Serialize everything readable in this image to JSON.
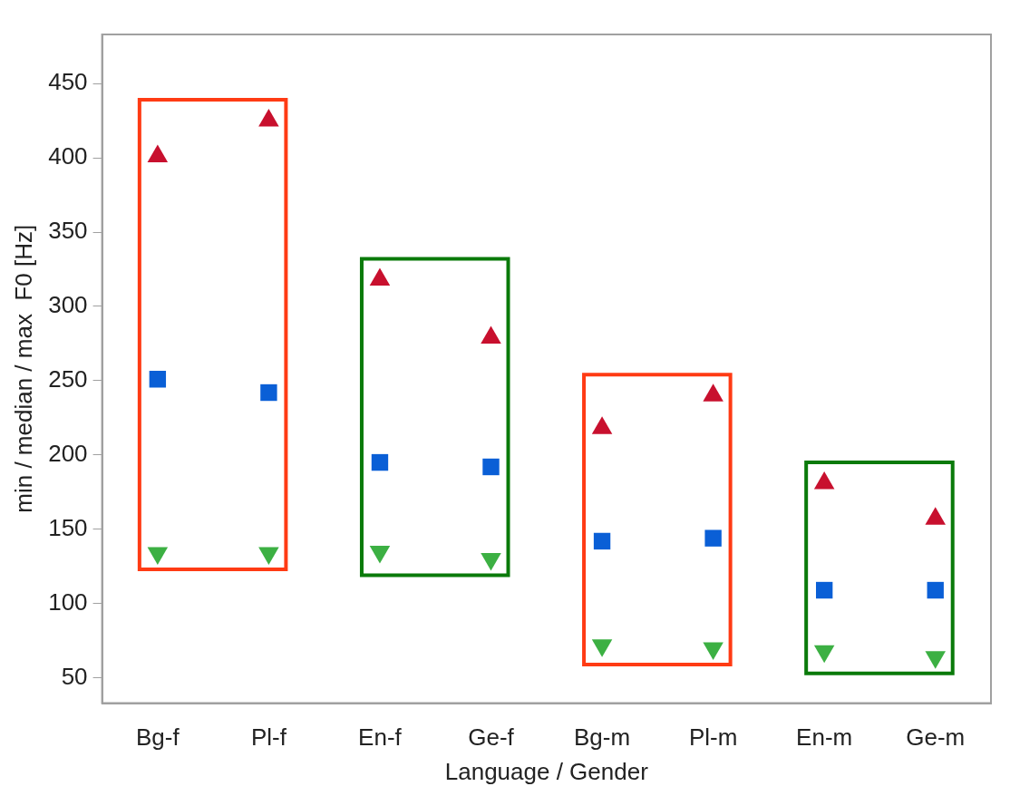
{
  "chart_data": {
    "type": "scatter",
    "xlabel": "Language / Gender",
    "ylabel": "min / median / max  F0 [Hz]",
    "categories": [
      "Bg-f",
      "Pl-f",
      "En-f",
      "Ge-f",
      "Bg-m",
      "Pl-m",
      "En-m",
      "Ge-m"
    ],
    "series": [
      {
        "color": "#c8102e",
        "marker": "triangle",
        "values": [
          401,
          425,
          318,
          279,
          218,
          240,
          181,
          157
        ]
      },
      {
        "color": "#0a5fd6",
        "marker": "square",
        "values": [
          251,
          242,
          195,
          192,
          142,
          144,
          109,
          109
        ]
      },
      {
        "color": "#3cb043",
        "marker": "triangle-down",
        "values": [
          134,
          134,
          135,
          130,
          72,
          70,
          68,
          64
        ]
      }
    ],
    "ylim": [
      33,
      483
    ],
    "yticks": [
      50,
      100,
      150,
      200,
      250,
      300,
      350,
      400,
      450
    ],
    "grid": false,
    "legend": false
  }
}
